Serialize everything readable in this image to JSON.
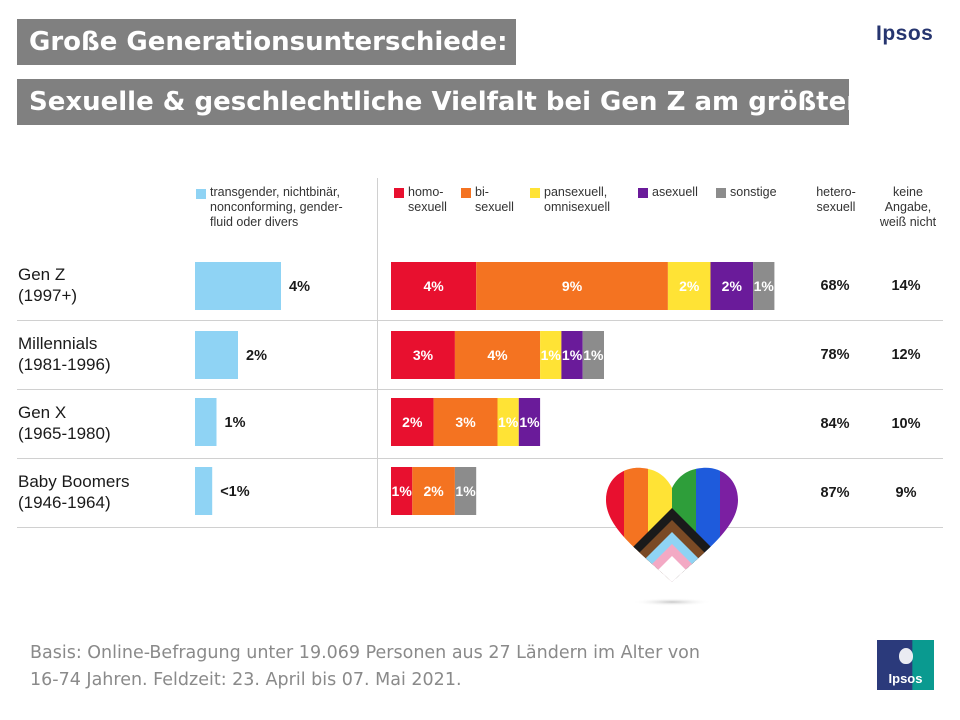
{
  "title": {
    "line1": "Große Generationsunterschiede:",
    "line2": "Sexuelle & geschlechtliche Vielfalt bei Gen Z am größten"
  },
  "brand": "Ipsos",
  "colors": {
    "transgender": "#8fd3f4",
    "homo": "#e8102f",
    "bi": "#f47321",
    "pan": "#ffe335",
    "asexuell": "#6a1b9a",
    "sonstige": "#8c8c8c"
  },
  "legend": {
    "transgender": "transgender, nichtbinär, nonconforming, gender-fluid oder divers",
    "homo": "homo-sexuell",
    "bi": "bi-sexuell",
    "pan": "pansexuell, omnisexuell",
    "asexuell": "asexuell",
    "sonstige": "sonstige"
  },
  "columns": {
    "hetero": "hetero-sexuell",
    "keine": "keine Angabe, weiß nicht"
  },
  "chart_data": {
    "type": "bar",
    "title": "Sexuelle & geschlechtliche Vielfalt bei Gen Z am größten",
    "categories": [
      "Gen Z (1997+)",
      "Millennials (1981-1996)",
      "Gen X (1965-1980)",
      "Baby Boomers (1946-1964)"
    ],
    "rows": [
      {
        "name": "Gen Z",
        "years": "(1997+)",
        "trans": 4,
        "trans_label": "4%",
        "segments": [
          {
            "key": "homo",
            "value": 4,
            "label": "4%"
          },
          {
            "key": "bi",
            "value": 9,
            "label": "9%"
          },
          {
            "key": "pan",
            "value": 2,
            "label": "2%"
          },
          {
            "key": "asexuell",
            "value": 2,
            "label": "2%"
          },
          {
            "key": "sonstige",
            "value": 1,
            "label": "1%"
          }
        ],
        "hetero": "68%",
        "keine": "14%"
      },
      {
        "name": "Millennials",
        "years": "(1981-1996)",
        "trans": 2,
        "trans_label": "2%",
        "segments": [
          {
            "key": "homo",
            "value": 3,
            "label": "3%"
          },
          {
            "key": "bi",
            "value": 4,
            "label": "4%"
          },
          {
            "key": "pan",
            "value": 1,
            "label": "1%"
          },
          {
            "key": "asexuell",
            "value": 1,
            "label": "1%"
          },
          {
            "key": "sonstige",
            "value": 1,
            "label": "1%"
          }
        ],
        "hetero": "78%",
        "keine": "12%"
      },
      {
        "name": "Gen X",
        "years": "(1965-1980)",
        "trans": 1,
        "trans_label": "1%",
        "segments": [
          {
            "key": "homo",
            "value": 2,
            "label": "2%"
          },
          {
            "key": "bi",
            "value": 3,
            "label": "3%"
          },
          {
            "key": "pan",
            "value": 1,
            "label": "1%"
          },
          {
            "key": "asexuell",
            "value": 1,
            "label": "1%"
          }
        ],
        "hetero": "84%",
        "keine": "10%"
      },
      {
        "name": "Baby Boomers",
        "years": "(1946-1964)",
        "trans": 0.8,
        "trans_label": "<1%",
        "segments": [
          {
            "key": "homo",
            "value": 1,
            "label": "1%"
          },
          {
            "key": "bi",
            "value": 2,
            "label": "2%"
          },
          {
            "key": "sonstige",
            "value": 1,
            "label": "1%"
          }
        ],
        "hetero": "87%",
        "keine": "9%"
      }
    ]
  },
  "footer": "Basis: Online-Befragung unter 19.069 Personen aus 27 Ländern im Alter von 16-74 Jahren. Feldzeit: 23. April bis 07. Mai 2021."
}
